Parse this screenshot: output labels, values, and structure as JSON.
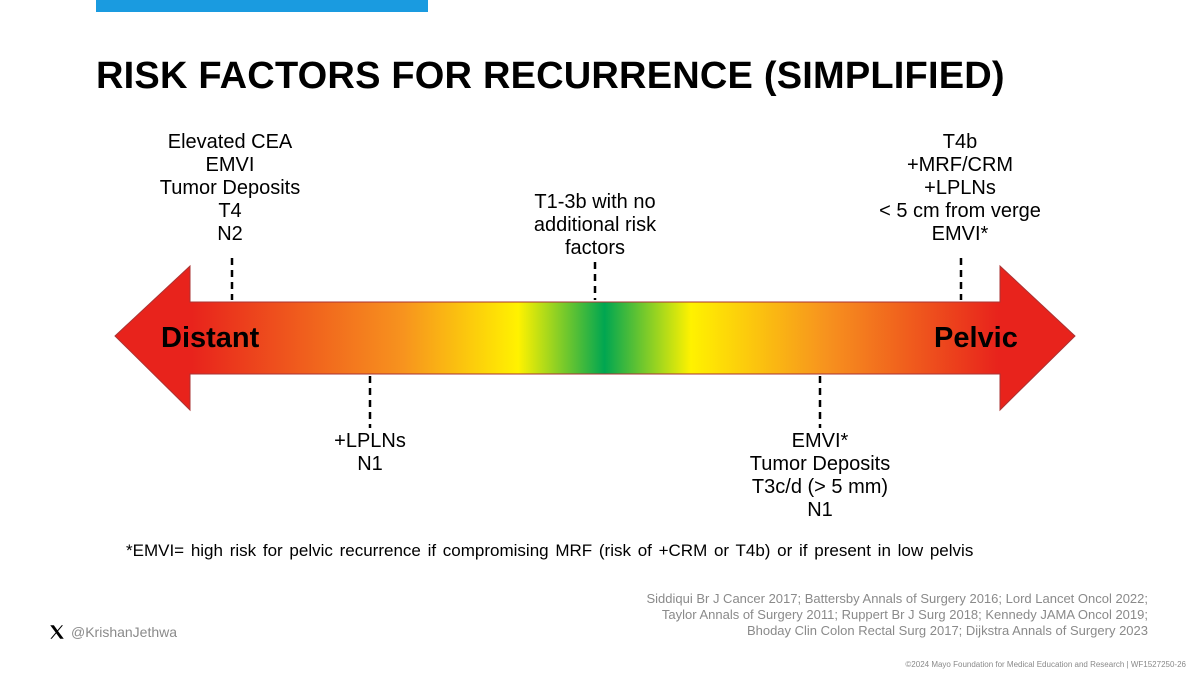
{
  "title": "RISK FACTORS FOR RECURRENCE (SIMPLIFIED)",
  "arrow": {
    "left_label": "Distant",
    "right_label": "Pelvic",
    "gradient_colors": [
      "#e8231c",
      "#f7931e",
      "#fff200",
      "#00a651",
      "#fff200",
      "#f7931e",
      "#e8231c"
    ]
  },
  "top_labels": {
    "distant": [
      "Elevated CEA",
      "EMVI",
      "Tumor Deposits",
      "T4",
      "N2"
    ],
    "middle": [
      "T1-3b with no",
      "additional risk",
      "factors"
    ],
    "pelvic": [
      "T4b",
      "+MRF/CRM",
      "+LPLNs",
      "< 5 cm from verge",
      "EMVI*"
    ]
  },
  "bottom_labels": {
    "distant": [
      "+LPLNs",
      "N1"
    ],
    "pelvic": [
      "EMVI*",
      "Tumor Deposits",
      "T3c/d (> 5 mm)",
      "N1"
    ]
  },
  "footnote": "*EMVI= high risk for pelvic recurrence if compromising MRF (risk of +CRM or T4b) or if present in low pelvis",
  "references": [
    "Siddiqui Br J Cancer 2017; Battersby Annals of Surgery 2016; Lord Lancet Oncol 2022;",
    "Taylor Annals of Surgery 2011; Ruppert Br J Surg 2018; Kennedy JAMA Oncol 2019;",
    "Bhoday Clin Colon Rectal Surg 2017; Dijkstra Annals of Surgery 2023"
  ],
  "social_handle": "@KrishanJethwa",
  "social_icon": "x-logo-icon",
  "copyright": "©2024 Mayo Foundation for Medical Education and Research  |  WF1527250-26",
  "accent_color": "#1a9be0"
}
